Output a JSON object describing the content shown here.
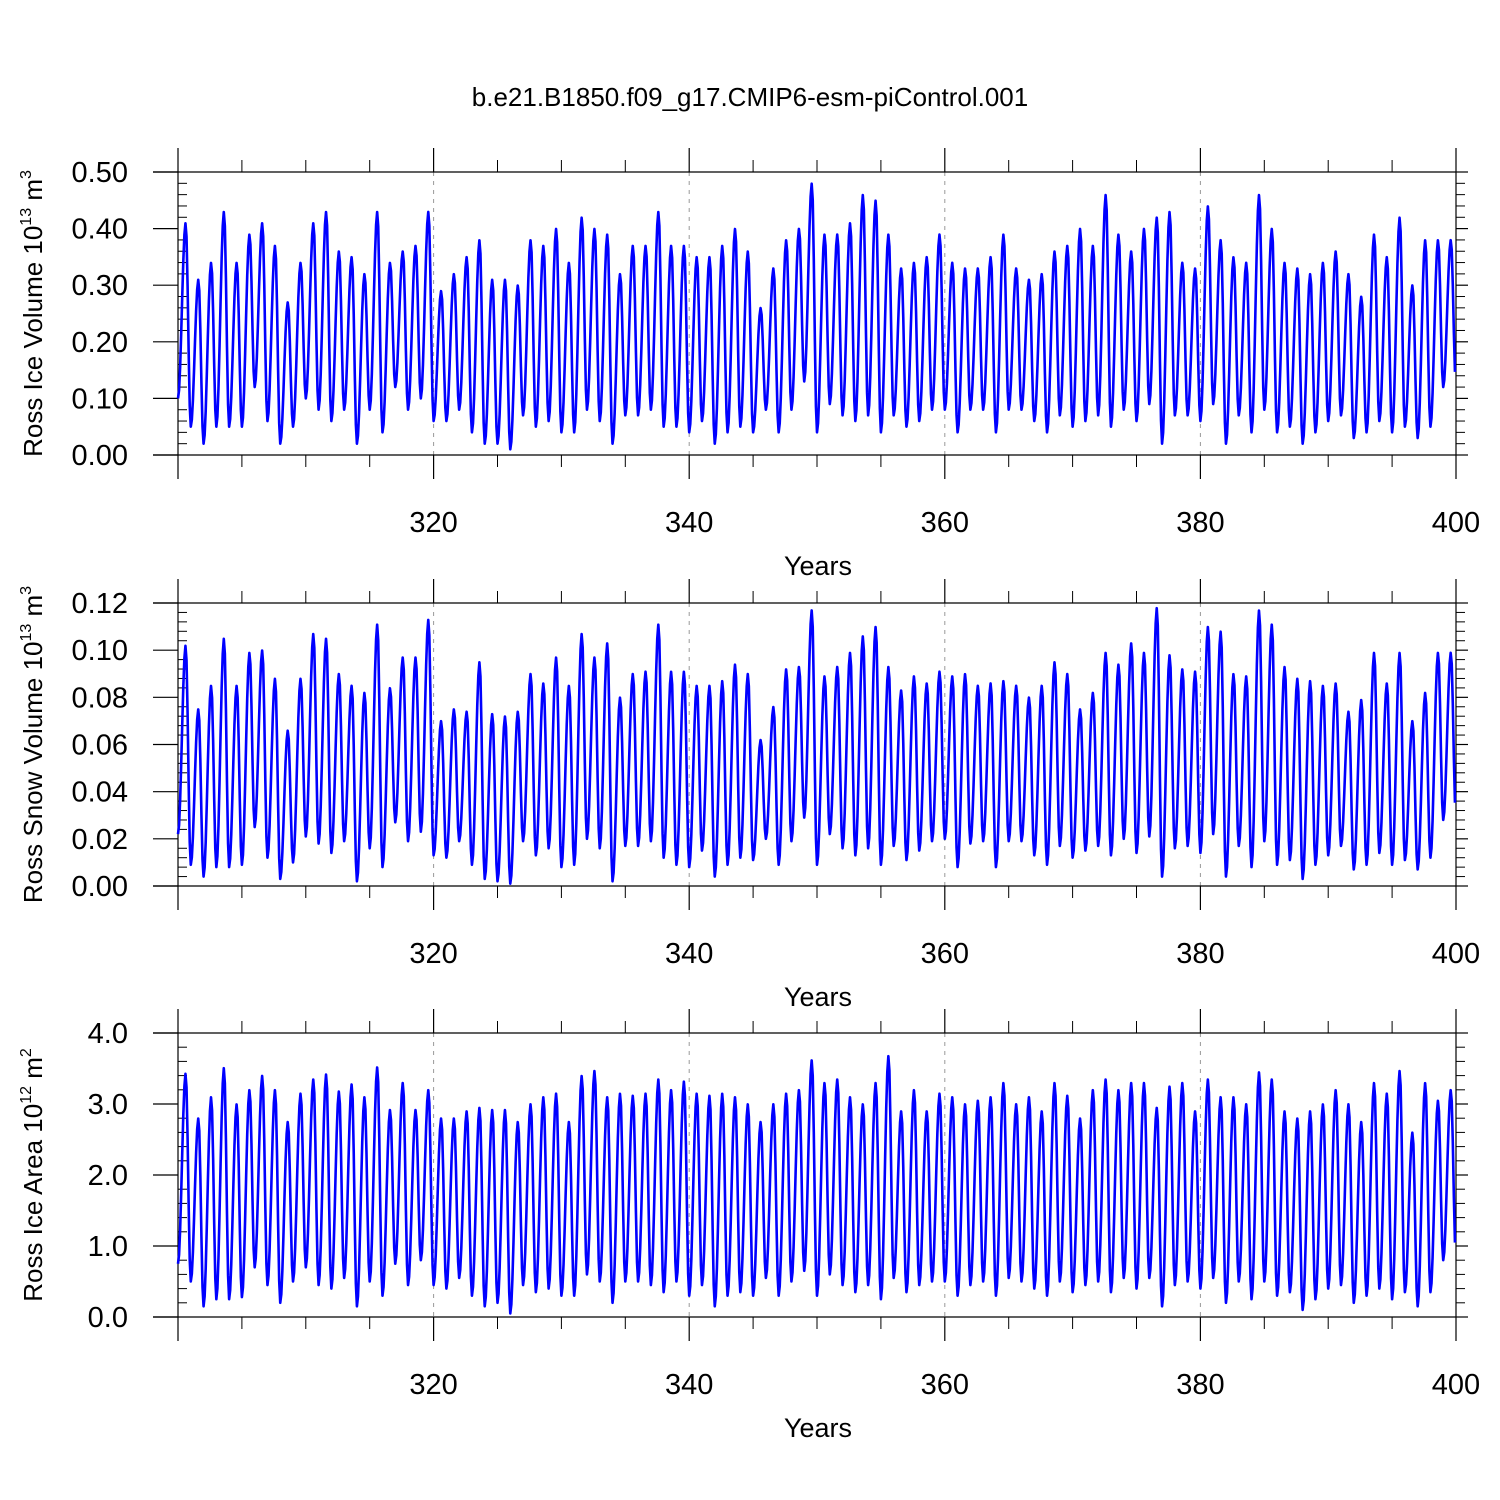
{
  "title": "b.e21.B1850.f09_g17.CMIP6-esm-piControl.001",
  "colors": {
    "series": "#0000ff",
    "axis": "#000000",
    "grid": "#999999"
  },
  "chart_data": [
    {
      "type": "line",
      "ylabel": {
        "text": "Ross Ice Volume 10",
        "exp": "13",
        "unit": " m",
        "unit_exp": "3"
      },
      "xlabel": "Years",
      "xlim": [
        300,
        400
      ],
      "ylim": [
        0,
        0.5
      ],
      "xticks": [
        320,
        340,
        360,
        380,
        400
      ],
      "yticks": [
        "0.00",
        "0.10",
        "0.20",
        "0.30",
        "0.40",
        "0.50"
      ],
      "ytick_values": [
        0,
        0.1,
        0.2,
        0.3,
        0.4,
        0.5
      ],
      "grid": "vertical dashed at major x ticks",
      "series": [
        {
          "x_start": 300,
          "step": 1,
          "peak_month_fraction": 0.6,
          "annual_max": [
            0.41,
            0.31,
            0.34,
            0.43,
            0.34,
            0.39,
            0.41,
            0.37,
            0.27,
            0.34,
            0.41,
            0.43,
            0.36,
            0.35,
            0.32,
            0.43,
            0.34,
            0.36,
            0.37,
            0.43,
            0.29,
            0.32,
            0.35,
            0.38,
            0.31,
            0.31,
            0.3,
            0.38,
            0.37,
            0.4,
            0.34,
            0.42,
            0.4,
            0.39,
            0.32,
            0.37,
            0.37,
            0.43,
            0.37,
            0.37,
            0.35,
            0.35,
            0.37,
            0.4,
            0.36,
            0.26,
            0.33,
            0.38,
            0.4,
            0.48,
            0.39,
            0.39,
            0.41,
            0.46,
            0.45,
            0.39,
            0.33,
            0.34,
            0.35,
            0.39,
            0.34,
            0.33,
            0.33,
            0.35,
            0.39,
            0.33,
            0.31,
            0.32,
            0.36,
            0.37,
            0.4,
            0.37,
            0.46,
            0.39,
            0.36,
            0.4,
            0.42,
            0.43,
            0.34,
            0.33,
            0.44,
            0.38,
            0.35,
            0.34,
            0.46,
            0.4,
            0.34,
            0.33,
            0.32,
            0.34,
            0.36,
            0.32,
            0.28,
            0.39,
            0.35,
            0.42,
            0.3,
            0.38,
            0.38,
            0.38
          ],
          "annual_min": [
            0.1,
            0.05,
            0.02,
            0.05,
            0.05,
            0.05,
            0.12,
            0.06,
            0.02,
            0.05,
            0.1,
            0.08,
            0.06,
            0.08,
            0.02,
            0.08,
            0.04,
            0.12,
            0.08,
            0.1,
            0.06,
            0.06,
            0.08,
            0.04,
            0.02,
            0.02,
            0.01,
            0.07,
            0.05,
            0.06,
            0.04,
            0.04,
            0.08,
            0.06,
            0.02,
            0.07,
            0.07,
            0.08,
            0.05,
            0.05,
            0.04,
            0.06,
            0.02,
            0.04,
            0.05,
            0.04,
            0.08,
            0.04,
            0.08,
            0.13,
            0.04,
            0.09,
            0.07,
            0.06,
            0.07,
            0.04,
            0.07,
            0.05,
            0.06,
            0.08,
            0.08,
            0.04,
            0.08,
            0.08,
            0.04,
            0.08,
            0.08,
            0.06,
            0.04,
            0.07,
            0.05,
            0.06,
            0.07,
            0.05,
            0.08,
            0.06,
            0.09,
            0.02,
            0.07,
            0.07,
            0.06,
            0.09,
            0.02,
            0.07,
            0.04,
            0.08,
            0.04,
            0.05,
            0.02,
            0.04,
            0.06,
            0.07,
            0.03,
            0.04,
            0.06,
            0.04,
            0.05,
            0.03,
            0.05,
            0.12
          ]
        }
      ]
    },
    {
      "type": "line",
      "ylabel": {
        "text": "Ross Snow Volume 10",
        "exp": "13",
        "unit": " m",
        "unit_exp": "3"
      },
      "xlabel": "Years",
      "xlim": [
        300,
        400
      ],
      "ylim": [
        0,
        0.12
      ],
      "xticks": [
        320,
        340,
        360,
        380,
        400
      ],
      "yticks": [
        "0.00",
        "0.02",
        "0.04",
        "0.06",
        "0.08",
        "0.10",
        "0.12"
      ],
      "ytick_values": [
        0,
        0.02,
        0.04,
        0.06,
        0.08,
        0.1,
        0.12
      ],
      "grid": "vertical dashed at major x ticks",
      "series": [
        {
          "x_start": 300,
          "step": 1,
          "peak_month_fraction": 0.6,
          "annual_max": [
            0.102,
            0.075,
            0.085,
            0.105,
            0.085,
            0.099,
            0.1,
            0.088,
            0.066,
            0.088,
            0.107,
            0.105,
            0.09,
            0.085,
            0.082,
            0.111,
            0.084,
            0.097,
            0.097,
            0.113,
            0.07,
            0.075,
            0.074,
            0.095,
            0.073,
            0.072,
            0.074,
            0.09,
            0.086,
            0.097,
            0.085,
            0.107,
            0.097,
            0.103,
            0.08,
            0.09,
            0.091,
            0.111,
            0.091,
            0.091,
            0.085,
            0.085,
            0.087,
            0.094,
            0.09,
            0.062,
            0.076,
            0.092,
            0.093,
            0.117,
            0.089,
            0.093,
            0.099,
            0.106,
            0.11,
            0.093,
            0.083,
            0.089,
            0.086,
            0.091,
            0.089,
            0.09,
            0.085,
            0.086,
            0.087,
            0.085,
            0.08,
            0.085,
            0.095,
            0.09,
            0.075,
            0.082,
            0.099,
            0.094,
            0.103,
            0.099,
            0.118,
            0.098,
            0.092,
            0.091,
            0.11,
            0.108,
            0.09,
            0.089,
            0.117,
            0.111,
            0.093,
            0.088,
            0.087,
            0.085,
            0.086,
            0.074,
            0.079,
            0.099,
            0.086,
            0.099,
            0.07,
            0.082,
            0.099,
            0.099
          ],
          "annual_min": [
            0.022,
            0.009,
            0.004,
            0.008,
            0.008,
            0.009,
            0.025,
            0.012,
            0.003,
            0.01,
            0.021,
            0.018,
            0.014,
            0.019,
            0.002,
            0.016,
            0.008,
            0.027,
            0.019,
            0.023,
            0.013,
            0.012,
            0.019,
            0.009,
            0.003,
            0.002,
            0.001,
            0.019,
            0.013,
            0.016,
            0.008,
            0.009,
            0.02,
            0.016,
            0.002,
            0.017,
            0.017,
            0.019,
            0.012,
            0.009,
            0.008,
            0.015,
            0.004,
            0.009,
            0.012,
            0.011,
            0.02,
            0.009,
            0.019,
            0.029,
            0.009,
            0.022,
            0.016,
            0.013,
            0.016,
            0.009,
            0.017,
            0.011,
            0.015,
            0.019,
            0.02,
            0.008,
            0.018,
            0.019,
            0.008,
            0.019,
            0.019,
            0.013,
            0.009,
            0.017,
            0.012,
            0.015,
            0.017,
            0.013,
            0.02,
            0.014,
            0.021,
            0.004,
            0.016,
            0.017,
            0.014,
            0.022,
            0.004,
            0.017,
            0.008,
            0.019,
            0.009,
            0.011,
            0.003,
            0.009,
            0.013,
            0.017,
            0.007,
            0.009,
            0.014,
            0.009,
            0.011,
            0.007,
            0.012,
            0.028
          ]
        }
      ]
    },
    {
      "type": "line",
      "ylabel": {
        "text": "Ross Ice Area 10",
        "exp": "12",
        "unit": " m",
        "unit_exp": "2"
      },
      "xlabel": "Years",
      "xlim": [
        300,
        400
      ],
      "ylim": [
        0,
        4.0
      ],
      "xticks": [
        320,
        340,
        360,
        380,
        400
      ],
      "yticks": [
        "0.0",
        "1.0",
        "2.0",
        "3.0",
        "4.0"
      ],
      "ytick_values": [
        0,
        1,
        2,
        3,
        4
      ],
      "grid": "vertical dashed at major x ticks",
      "series": [
        {
          "x_start": 300,
          "step": 1,
          "peak_month_fraction": 0.6,
          "annual_max": [
            3.43,
            2.8,
            3.1,
            3.51,
            3.0,
            3.2,
            3.4,
            3.2,
            2.75,
            3.15,
            3.35,
            3.42,
            3.18,
            3.28,
            3.1,
            3.52,
            2.92,
            3.3,
            2.92,
            3.2,
            2.8,
            2.8,
            2.9,
            2.95,
            2.92,
            2.92,
            2.75,
            3.0,
            3.1,
            3.15,
            2.75,
            3.4,
            3.47,
            3.1,
            3.15,
            3.12,
            3.15,
            3.35,
            3.2,
            3.32,
            3.15,
            3.12,
            3.15,
            3.1,
            3.0,
            2.75,
            3.0,
            3.15,
            3.2,
            3.62,
            3.3,
            3.35,
            3.1,
            3.0,
            3.3,
            3.68,
            2.9,
            3.2,
            2.9,
            3.15,
            3.1,
            3.0,
            3.05,
            3.1,
            3.3,
            3.0,
            3.1,
            2.9,
            3.3,
            3.12,
            2.8,
            3.2,
            3.35,
            3.2,
            3.3,
            3.3,
            2.95,
            3.25,
            3.3,
            2.9,
            3.35,
            3.1,
            3.1,
            3.0,
            3.45,
            3.35,
            2.9,
            2.8,
            2.9,
            3.0,
            3.2,
            3.0,
            2.75,
            3.3,
            3.15,
            3.47,
            2.6,
            3.3,
            3.05,
            3.2
          ],
          "annual_min": [
            0.75,
            0.5,
            0.15,
            0.25,
            0.25,
            0.28,
            0.7,
            0.45,
            0.2,
            0.5,
            0.7,
            0.45,
            0.4,
            0.55,
            0.15,
            0.5,
            0.3,
            0.75,
            0.45,
            0.8,
            0.45,
            0.4,
            0.55,
            0.3,
            0.15,
            0.2,
            0.05,
            0.45,
            0.35,
            0.4,
            0.3,
            0.3,
            0.6,
            0.5,
            0.2,
            0.5,
            0.5,
            0.45,
            0.35,
            0.5,
            0.3,
            0.45,
            0.15,
            0.3,
            0.35,
            0.3,
            0.55,
            0.3,
            0.5,
            0.65,
            0.3,
            0.6,
            0.45,
            0.35,
            0.45,
            0.25,
            0.55,
            0.35,
            0.45,
            0.5,
            0.5,
            0.3,
            0.45,
            0.5,
            0.3,
            0.55,
            0.5,
            0.4,
            0.3,
            0.5,
            0.35,
            0.45,
            0.5,
            0.35,
            0.55,
            0.4,
            0.55,
            0.15,
            0.45,
            0.5,
            0.4,
            0.55,
            0.2,
            0.5,
            0.25,
            0.5,
            0.3,
            0.35,
            0.1,
            0.25,
            0.4,
            0.45,
            0.2,
            0.3,
            0.4,
            0.25,
            0.35,
            0.15,
            0.35,
            0.8
          ]
        }
      ]
    }
  ]
}
